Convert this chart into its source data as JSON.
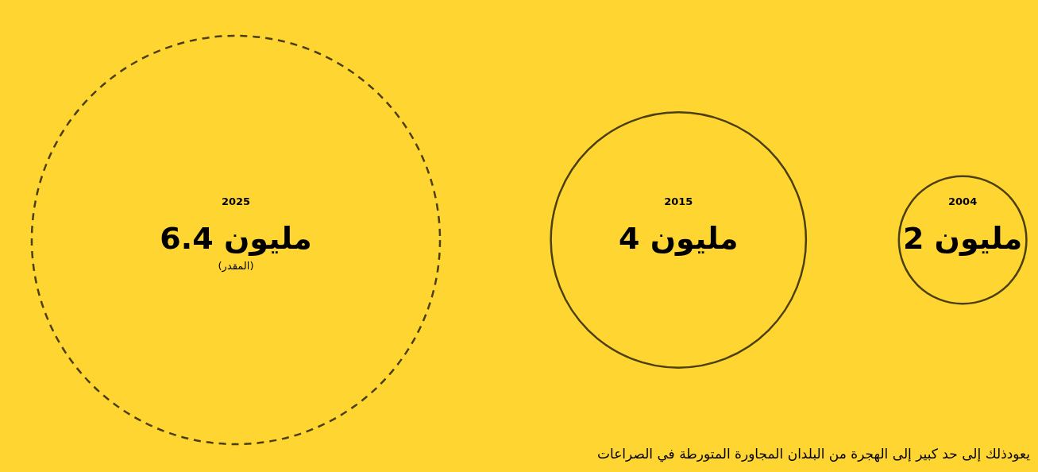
{
  "chart_data": {
    "type": "other",
    "categories": [
      "2025",
      "2015",
      "2004"
    ],
    "series": [
      {
        "color": "#000000",
        "line_style": "dashed",
        "values": [
          6.4,
          null,
          null
        ],
        "value_labels": [
          "6.4 مليون",
          null,
          null
        ]
      },
      {
        "color": "#000000",
        "line_style": "solid",
        "values": [
          null,
          4,
          2
        ],
        "value_labels": [
          null,
          "4 مليون",
          "2 مليون"
        ]
      }
    ],
    "annotations": [
      "(المقدر)",
      "يعودذلك إلى حد كبير إلى الهجرة من البلدان المجاورة المتورطة في الصراعات"
    ]
  }
}
